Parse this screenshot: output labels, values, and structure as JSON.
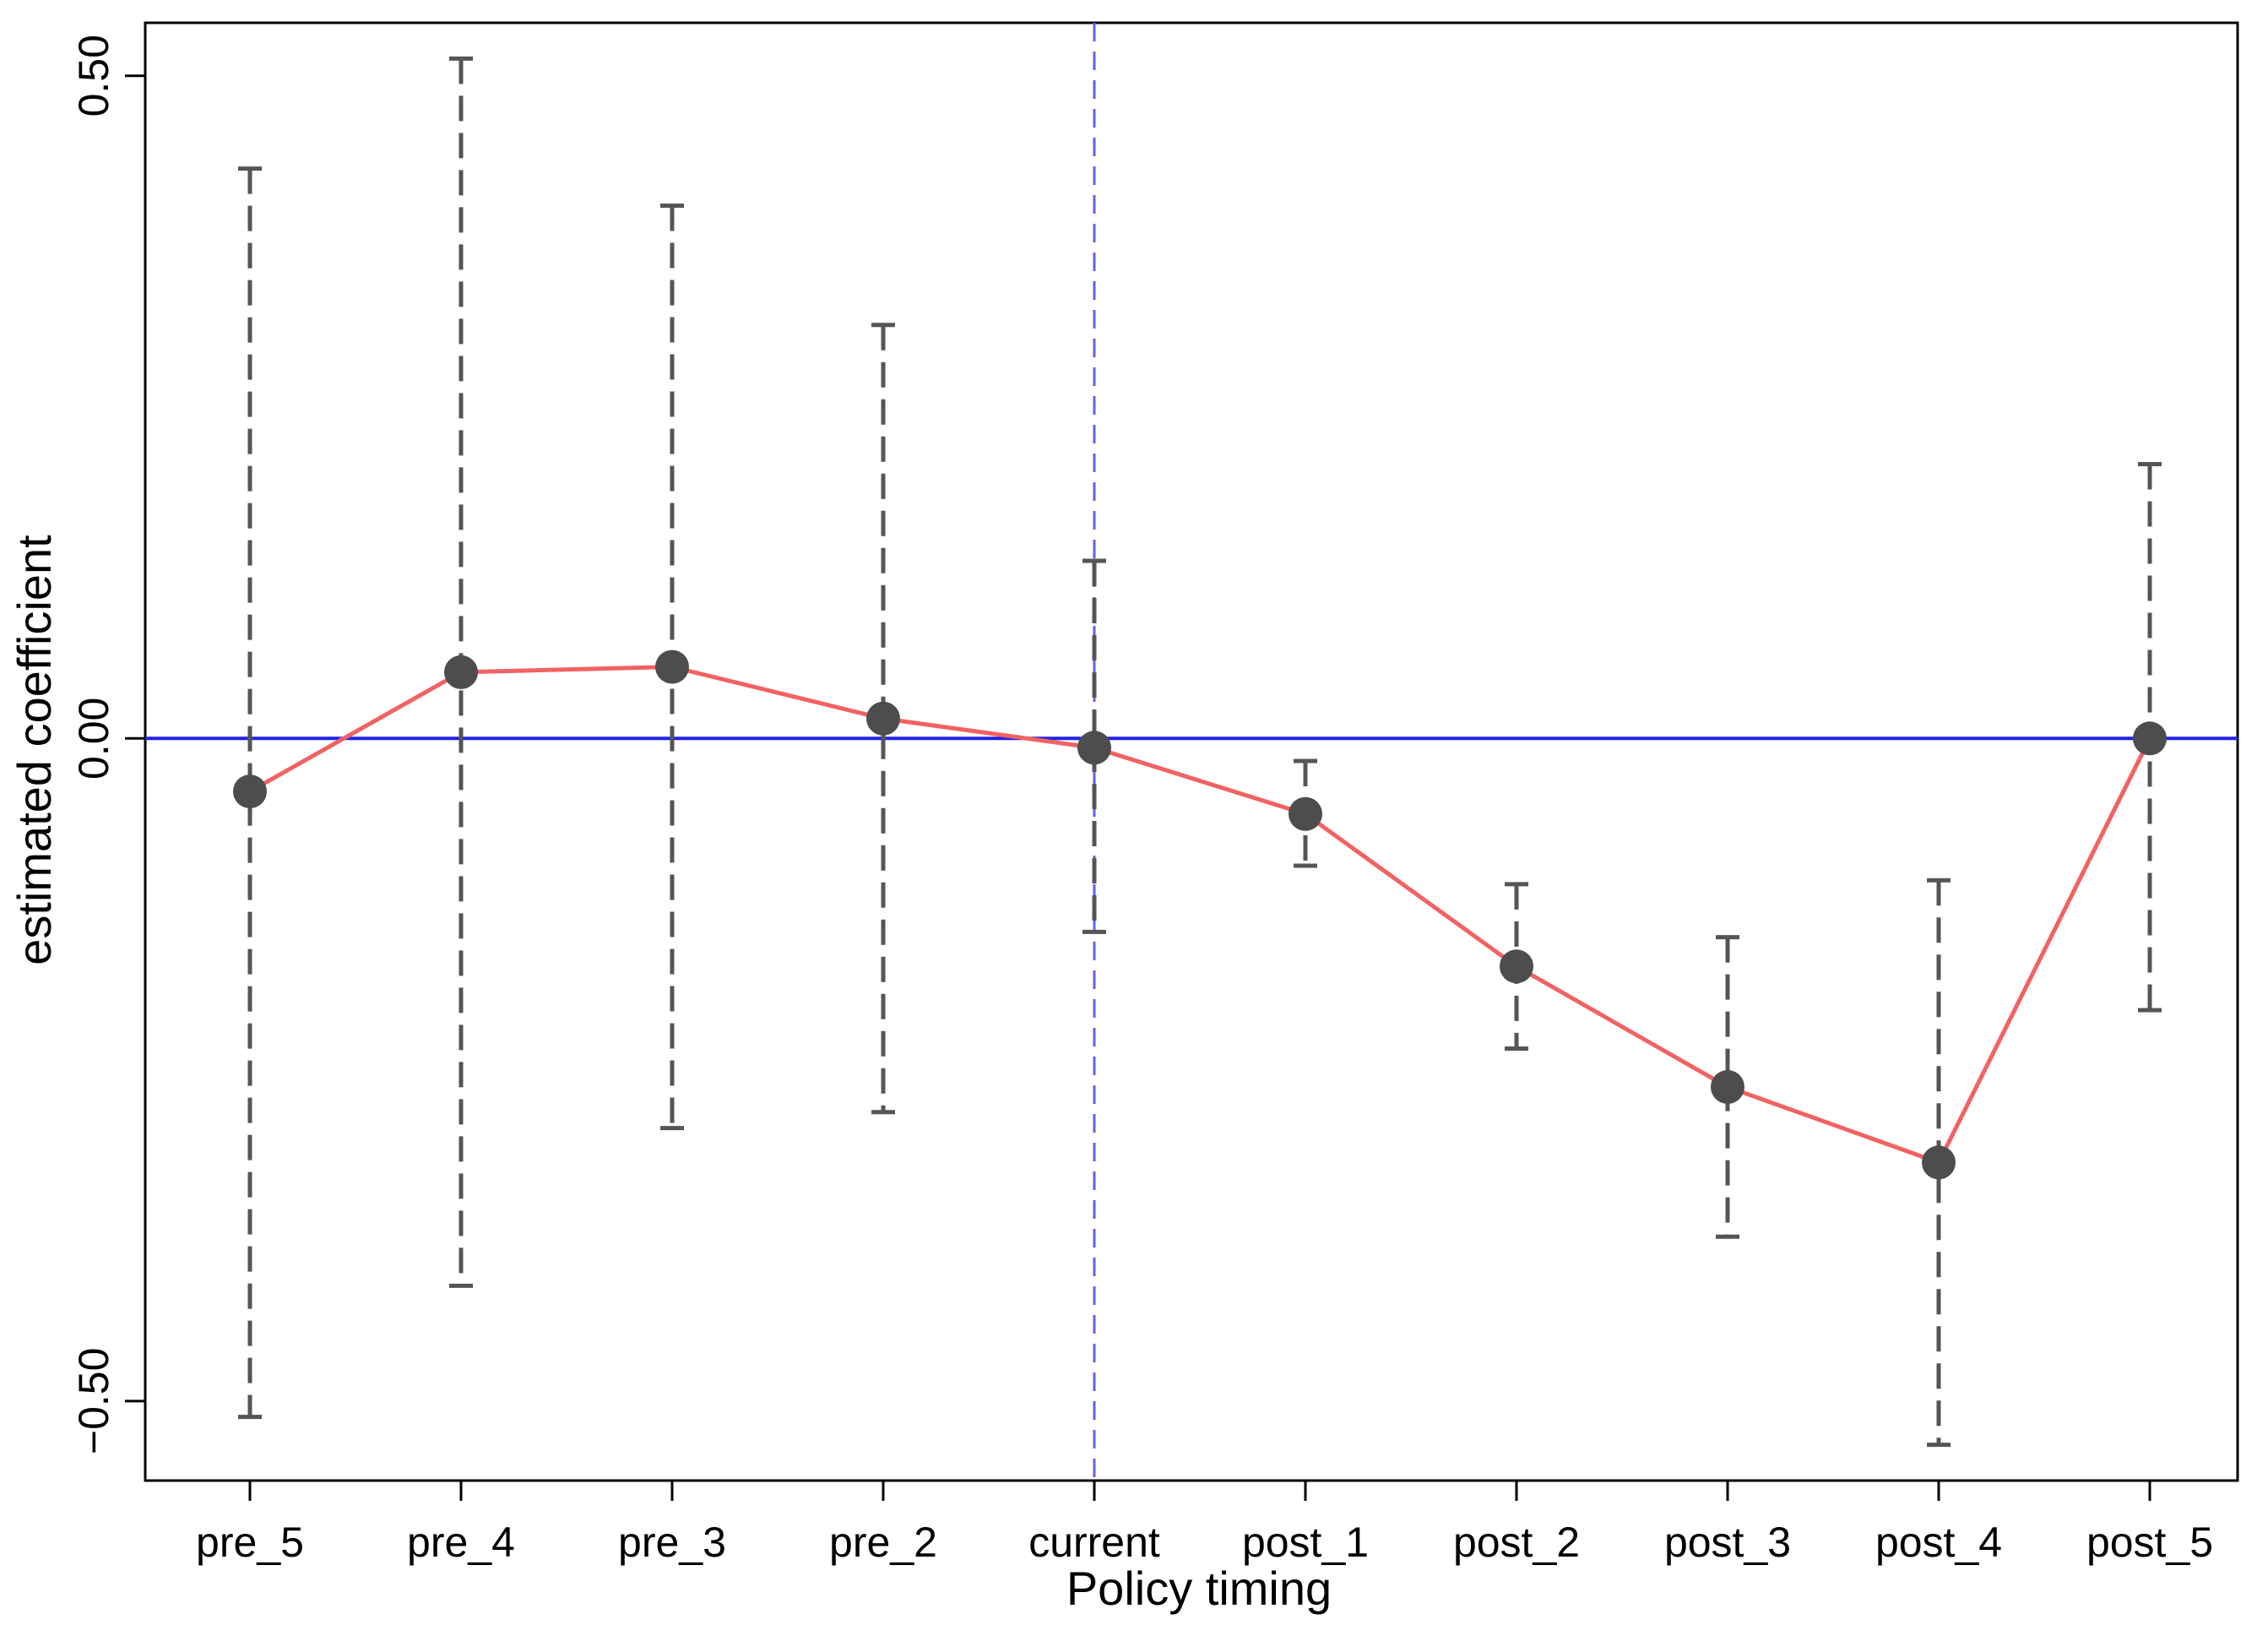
{
  "chart_data": {
    "type": "line",
    "xlabel": "Policy timing",
    "ylabel": "estimated coefficient",
    "categories": [
      "pre_5",
      "pre_4",
      "pre_3",
      "pre_2",
      "current",
      "post_1",
      "post_2",
      "post_3",
      "post_4",
      "post_5"
    ],
    "series": [
      {
        "values": [
          -0.04,
          0.05,
          0.054,
          0.015,
          -0.007,
          -0.057,
          -0.172,
          -0.263,
          -0.32,
          0.0
        ],
        "lower": [
          -0.512,
          -0.413,
          -0.294,
          -0.282,
          -0.146,
          -0.096,
          -0.234,
          -0.376,
          -0.533,
          -0.205
        ],
        "upper": [
          0.43,
          0.513,
          0.402,
          0.312,
          0.134,
          -0.017,
          -0.11,
          -0.15,
          -0.107,
          0.207
        ]
      }
    ],
    "yticks": [
      -0.5,
      0.0,
      0.5
    ],
    "ytick_labels": [
      "−0.50",
      "0.00",
      "0.50"
    ],
    "ylim": [
      -0.56,
      0.54
    ],
    "reference_lines": {
      "horizontal_y": 0.0,
      "vertical_at": "current"
    },
    "grid": false,
    "legend": "none",
    "colors": {
      "line": "#f26262",
      "points": "#4d4d4d",
      "error_bars": "#555555",
      "horizontal_reference": "#2020f0",
      "vertical_reference": "#6060f0"
    }
  }
}
